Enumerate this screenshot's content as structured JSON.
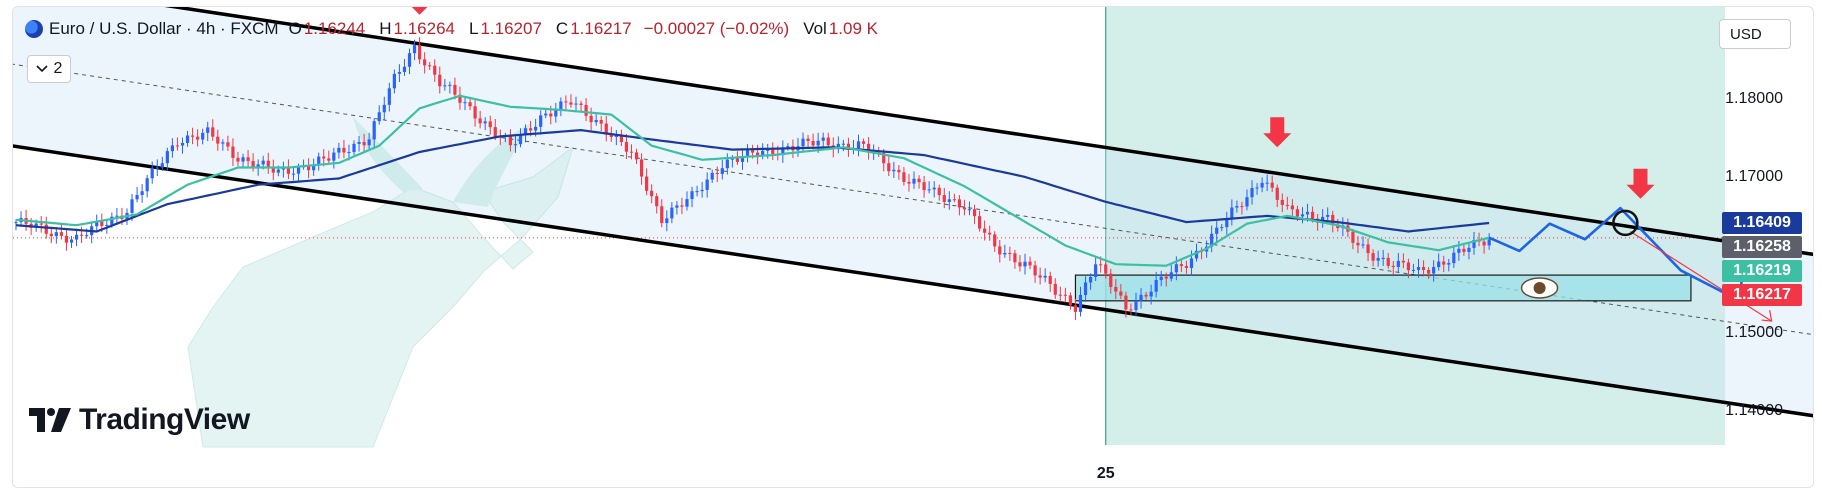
{
  "header": {
    "symbol_title": "Euro / U.S. Dollar · 4h · FXCM",
    "ohlc": [
      {
        "label": "O",
        "value": "1.16244"
      },
      {
        "label": "H",
        "value": "1.16264"
      },
      {
        "label": "L",
        "value": "1.16207"
      },
      {
        "label": "C",
        "value": "1.16217"
      }
    ],
    "change": "−0.00027 (−0.02%)",
    "volume_label": "Vol",
    "volume_value": "1.09 K",
    "indicators_count": "2",
    "currency": "USD",
    "brand": "TradingView"
  },
  "colors": {
    "up": "#2962ff",
    "down": "#f23645",
    "ema_fast": "#3cbfa3",
    "ema_slow": "#1a3a9c",
    "channel": "#000000",
    "zone": "#99e0e6",
    "projection": "#1e64e6",
    "future_zone": "#d4efe9",
    "badge_ema_slow": "#1a3a9c",
    "badge_prev": "#5d606b",
    "badge_ema_fast": "#3cbfa3",
    "badge_last": "#f23645"
  },
  "chart_data": {
    "type": "candlestick",
    "title": "Euro / U.S. Dollar · 4h · FXCM",
    "ylim": [
      1.1356,
      1.1918
    ],
    "y_ticks": [
      {
        "value": 1.18,
        "label": "1.18000"
      },
      {
        "value": 1.17,
        "label": "1.17000"
      },
      {
        "value": 1.15,
        "label": "1.15000"
      },
      {
        "value": 1.14,
        "label": "1.14000"
      }
    ],
    "x_tick": {
      "label": "25",
      "bar_index": 216
    },
    "last_bar_index": 216,
    "future_bars": 70,
    "price_badges": [
      {
        "name": "ema-slow",
        "value": 1.16409,
        "label": "1.16409"
      },
      {
        "name": "previous-close",
        "value": 1.16258,
        "label": "1.16258"
      },
      {
        "name": "ema-fast",
        "value": 1.16219,
        "label": "1.16219"
      },
      {
        "name": "last-price",
        "value": 1.16217,
        "label": "1.16217"
      }
    ],
    "close_anchors": [
      [
        0,
        1.1642
      ],
      [
        12,
        1.162
      ],
      [
        22,
        1.1658
      ],
      [
        32,
        1.1748
      ],
      [
        38,
        1.1755
      ],
      [
        44,
        1.1726
      ],
      [
        52,
        1.1705
      ],
      [
        62,
        1.1723
      ],
      [
        70,
        1.1752
      ],
      [
        75,
        1.1824
      ],
      [
        79,
        1.1868
      ],
      [
        84,
        1.182
      ],
      [
        90,
        1.1788
      ],
      [
        98,
        1.1738
      ],
      [
        104,
        1.1778
      ],
      [
        110,
        1.1795
      ],
      [
        116,
        1.1768
      ],
      [
        122,
        1.1728
      ],
      [
        128,
        1.1648
      ],
      [
        134,
        1.1673
      ],
      [
        140,
        1.1718
      ],
      [
        150,
        1.1735
      ],
      [
        160,
        1.1745
      ],
      [
        168,
        1.1738
      ],
      [
        176,
        1.17
      ],
      [
        182,
        1.1678
      ],
      [
        188,
        1.1665
      ],
      [
        194,
        1.1608
      ],
      [
        200,
        1.159
      ],
      [
        206,
        1.1552
      ],
      [
        210,
        1.1535
      ],
      [
        214,
        1.159
      ],
      [
        220,
        1.1532
      ],
      [
        226,
        1.1562
      ],
      [
        232,
        1.159
      ],
      [
        238,
        1.163
      ],
      [
        244,
        1.1675
      ],
      [
        247,
        1.17
      ],
      [
        252,
        1.1655
      ],
      [
        260,
        1.1648
      ],
      [
        266,
        1.1612
      ],
      [
        272,
        1.159
      ],
      [
        278,
        1.1578
      ],
      [
        284,
        1.1595
      ],
      [
        290,
        1.1615
      ],
      [
        292,
        1.1622
      ]
    ],
    "ema_fast_anchors": [
      [
        0,
        1.1645
      ],
      [
        12,
        1.1638
      ],
      [
        24,
        1.1652
      ],
      [
        34,
        1.169
      ],
      [
        44,
        1.1712
      ],
      [
        54,
        1.1712
      ],
      [
        64,
        1.1718
      ],
      [
        72,
        1.174
      ],
      [
        80,
        1.1788
      ],
      [
        88,
        1.1804
      ],
      [
        98,
        1.179
      ],
      [
        108,
        1.1786
      ],
      [
        118,
        1.178
      ],
      [
        126,
        1.174
      ],
      [
        136,
        1.1722
      ],
      [
        150,
        1.1728
      ],
      [
        164,
        1.1738
      ],
      [
        176,
        1.1724
      ],
      [
        188,
        1.1688
      ],
      [
        198,
        1.165
      ],
      [
        208,
        1.1612
      ],
      [
        218,
        1.1588
      ],
      [
        228,
        1.1586
      ],
      [
        236,
        1.1608
      ],
      [
        244,
        1.164
      ],
      [
        252,
        1.165
      ],
      [
        262,
        1.1638
      ],
      [
        272,
        1.1616
      ],
      [
        282,
        1.1606
      ],
      [
        292,
        1.1622
      ]
    ],
    "ema_slow_anchors": [
      [
        0,
        1.1638
      ],
      [
        16,
        1.163
      ],
      [
        30,
        1.1665
      ],
      [
        48,
        1.169
      ],
      [
        64,
        1.1698
      ],
      [
        80,
        1.1732
      ],
      [
        96,
        1.1752
      ],
      [
        112,
        1.176
      ],
      [
        126,
        1.1748
      ],
      [
        142,
        1.1735
      ],
      [
        162,
        1.1738
      ],
      [
        180,
        1.1728
      ],
      [
        200,
        1.17
      ],
      [
        216,
        1.1668
      ],
      [
        232,
        1.1642
      ],
      [
        248,
        1.165
      ],
      [
        262,
        1.1642
      ],
      [
        276,
        1.163
      ],
      [
        292,
        1.16409
      ]
    ],
    "channel_upper": {
      "start": [
        -1,
        1.195
      ],
      "end": [
        362,
        1.1595
      ]
    },
    "channel_lower": {
      "start": [
        -1,
        1.174
      ],
      "end": [
        362,
        1.1388
      ]
    },
    "channel_mid": {
      "start": [
        -1,
        1.1845
      ],
      "end": [
        362,
        1.1492
      ]
    },
    "demand_zone": {
      "x_start": 210,
      "x_end": 332,
      "y_low": 1.1541,
      "y_high": 1.1574
    },
    "current_price_line": 1.16217,
    "projection_path": [
      [
        292,
        1.1622
      ],
      [
        298,
        1.1605
      ],
      [
        304,
        1.164
      ],
      [
        311,
        1.162
      ],
      [
        318,
        1.166
      ],
      [
        330,
        1.158
      ],
      [
        342,
        1.154
      ],
      [
        342,
        1.157
      ]
    ],
    "projection_alt": [
      [
        320,
        1.163
      ],
      [
        348,
        1.1515
      ]
    ],
    "sell_arrows": [
      {
        "bar_index": 80,
        "price": 1.1908,
        "label": "top"
      },
      {
        "bar_index": 250,
        "price": 1.1738,
        "label": "mid"
      },
      {
        "bar_index": 322,
        "price": 1.1672,
        "label": "projected"
      }
    ],
    "touch_point": {
      "bar_index": 319,
      "price": 1.1641
    }
  }
}
